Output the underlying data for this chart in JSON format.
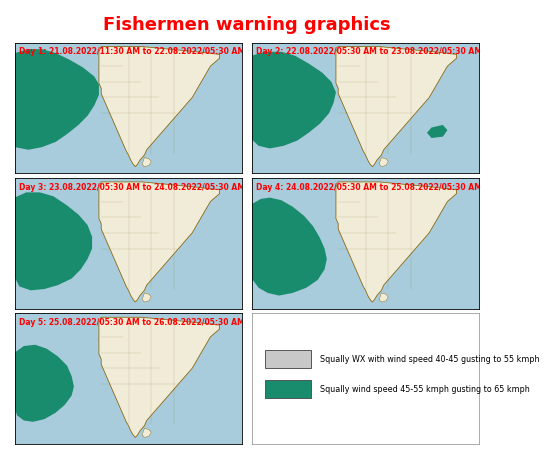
{
  "title": "Fishermen warning graphics",
  "title_bg": "#FFFF00",
  "title_color": "#FF0000",
  "title_fontsize": 13,
  "panels": [
    {
      "label": "Day 1: 21.08.2022/11:30 AM to 22.08.2022/05:30 AM"
    },
    {
      "label": "Day 2: 22.08.2022/05:30 AM to 23.08.2022/05:30 AM"
    },
    {
      "label": "Day 3: 23.08.2022/05:30 AM to 24.08.2022/05:30 AM"
    },
    {
      "label": "Day 4: 24.08.2022/05:30 AM to 25.08.2022/05:30 AM"
    },
    {
      "label": "Day 5: 25.08.2022/05:30 AM to 26.08.2022/05:30 AM"
    }
  ],
  "label_color": "#FF0000",
  "label_fontsize": 5.5,
  "map_bg": "#A8CCDC",
  "land_color": "#F0ECD8",
  "india_border_color": "#8B6914",
  "green_zone_color": "#1A8C6E",
  "gray_zone_color": "#C8C8C8",
  "legend_text1": "Squally WX with wind speed 40-45 gusting to 55 kmph",
  "legend_text2": "Squally wind speed 45-55 kmph gusting to 65 kmph",
  "legend_fontsize": 5.8,
  "outer_bg": "#FFFFFF",
  "border_color": "#000000"
}
